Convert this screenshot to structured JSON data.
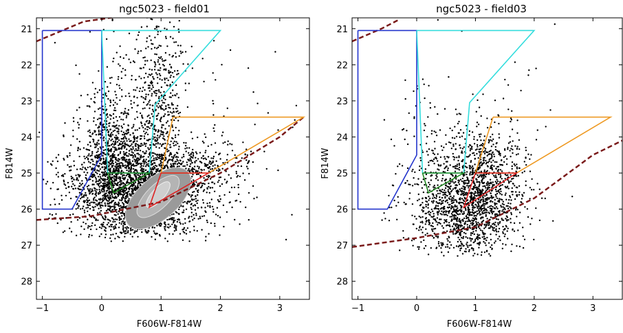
{
  "chart_data": [
    {
      "type": "scatter",
      "title": "ngc5023 - field01",
      "xlabel": "F606W-F814W",
      "ylabel": "F814W",
      "xlim": [
        -1.1,
        3.5
      ],
      "ylim": [
        28.5,
        20.7
      ],
      "y_inverted": true,
      "x_ticks": [
        -1,
        0,
        1,
        2,
        3
      ],
      "y_ticks": [
        21,
        22,
        23,
        24,
        25,
        26,
        27,
        28
      ],
      "has_density_contours": true,
      "points_cloud": [
        {
          "cx": 0.4,
          "cy": 25.4,
          "sx": 0.5,
          "sy": 0.75,
          "n": 1400
        },
        {
          "cx": 0.9,
          "cy": 25.6,
          "sx": 0.55,
          "sy": 0.6,
          "n": 1100
        },
        {
          "cx": 0.15,
          "cy": 24.3,
          "sx": 0.25,
          "sy": 0.8,
          "n": 500
        },
        {
          "cx": 0.95,
          "cy": 23.2,
          "sx": 0.2,
          "sy": 1.3,
          "n": 450
        },
        {
          "cx": 1.6,
          "cy": 24.8,
          "sx": 0.45,
          "sy": 0.35,
          "n": 250
        },
        {
          "cx": 0.8,
          "cy": 22.5,
          "sx": 0.6,
          "sy": 0.9,
          "n": 120
        },
        {
          "cx": 1.2,
          "cy": 24.0,
          "sx": 1.0,
          "sy": 1.6,
          "n": 120
        }
      ],
      "regions": [
        {
          "color": "#2233cc",
          "points": [
            [
              -1.0,
              21.05
            ],
            [
              0.0,
              21.05
            ],
            [
              0.0,
              24.5
            ],
            [
              -0.5,
              26.0
            ],
            [
              -1.0,
              26.0
            ],
            [
              -1.0,
              21.05
            ]
          ]
        },
        {
          "color": "#33dddd",
          "points": [
            [
              0.0,
              21.05
            ],
            [
              2.0,
              21.05
            ],
            [
              0.9,
              23.1
            ],
            [
              0.8,
              25.0
            ],
            [
              0.1,
              25.0
            ],
            [
              0.0,
              21.05
            ]
          ]
        },
        {
          "color": "#ee9922",
          "points": [
            [
              1.2,
              23.45
            ],
            [
              3.4,
              23.45
            ],
            [
              1.8,
              25.0
            ],
            [
              1.0,
              25.0
            ],
            [
              1.2,
              23.45
            ]
          ]
        },
        {
          "color": "#228822",
          "points": [
            [
              0.1,
              25.0
            ],
            [
              0.8,
              25.0
            ],
            [
              0.2,
              25.55
            ],
            [
              0.1,
              25.0
            ]
          ]
        },
        {
          "color": "#dd2222",
          "points": [
            [
              1.0,
              25.0
            ],
            [
              1.8,
              25.0
            ],
            [
              0.8,
              25.95
            ],
            [
              1.0,
              25.0
            ]
          ]
        }
      ],
      "completeness_curve": {
        "color": "#7a1a1a",
        "points": [
          [
            -1.1,
            21.35
          ],
          [
            -0.3,
            20.8
          ],
          [
            1.0,
            20.5
          ],
          [
            -1.1,
            26.3
          ],
          [
            -0.2,
            26.2
          ],
          [
            1.0,
            25.8
          ],
          [
            2.0,
            25.0
          ],
          [
            3.0,
            24.0
          ],
          [
            3.4,
            23.45
          ]
        ]
      }
    },
    {
      "type": "scatter",
      "title": "ngc5023 - field03",
      "xlabel": "F606W-F814W",
      "ylabel": "F814W",
      "xlim": [
        -1.1,
        3.5
      ],
      "ylim": [
        28.5,
        20.7
      ],
      "y_inverted": true,
      "x_ticks": [
        -1,
        0,
        1,
        2,
        3
      ],
      "y_ticks": [
        21,
        22,
        23,
        24,
        25,
        26,
        27,
        28
      ],
      "has_density_contours": false,
      "points_cloud": [
        {
          "cx": 0.85,
          "cy": 26.1,
          "sx": 0.45,
          "sy": 0.65,
          "n": 1100
        },
        {
          "cx": 1.0,
          "cy": 25.3,
          "sx": 0.4,
          "sy": 0.55,
          "n": 500
        },
        {
          "cx": 1.2,
          "cy": 24.5,
          "sx": 0.35,
          "sy": 0.55,
          "n": 180
        },
        {
          "cx": 0.2,
          "cy": 24.3,
          "sx": 0.3,
          "sy": 0.9,
          "n": 90
        },
        {
          "cx": 1.0,
          "cy": 23.5,
          "sx": 0.7,
          "sy": 1.4,
          "n": 60
        }
      ],
      "regions": [
        {
          "color": "#2233cc",
          "points": [
            [
              -1.0,
              21.05
            ],
            [
              0.0,
              21.05
            ],
            [
              0.0,
              24.5
            ],
            [
              -0.5,
              26.0
            ],
            [
              -1.0,
              26.0
            ],
            [
              -1.0,
              21.05
            ]
          ]
        },
        {
          "color": "#33dddd",
          "points": [
            [
              0.0,
              21.05
            ],
            [
              2.0,
              21.05
            ],
            [
              0.9,
              23.05
            ],
            [
              0.8,
              25.0
            ],
            [
              0.1,
              25.0
            ],
            [
              0.0,
              21.05
            ]
          ]
        },
        {
          "color": "#ee9922",
          "points": [
            [
              1.3,
              23.45
            ],
            [
              3.3,
              23.45
            ],
            [
              1.7,
              25.0
            ],
            [
              1.0,
              25.0
            ],
            [
              1.3,
              23.45
            ]
          ]
        },
        {
          "color": "#228822",
          "points": [
            [
              0.1,
              25.0
            ],
            [
              0.8,
              25.0
            ],
            [
              0.2,
              25.55
            ],
            [
              0.1,
              25.0
            ]
          ]
        },
        {
          "color": "#dd2222",
          "points": [
            [
              1.0,
              25.0
            ],
            [
              1.7,
              25.0
            ],
            [
              0.8,
              25.95
            ],
            [
              1.0,
              25.0
            ]
          ]
        }
      ],
      "completeness_curve": {
        "color": "#7a1a1a",
        "points": [
          [
            -1.1,
            21.35
          ],
          [
            -0.6,
            21.0
          ],
          [
            -0.3,
            20.75
          ],
          [
            -1.1,
            27.05
          ],
          [
            0.0,
            26.8
          ],
          [
            1.0,
            26.5
          ],
          [
            2.0,
            25.7
          ],
          [
            3.0,
            24.5
          ],
          [
            3.5,
            24.1
          ]
        ]
      }
    }
  ]
}
